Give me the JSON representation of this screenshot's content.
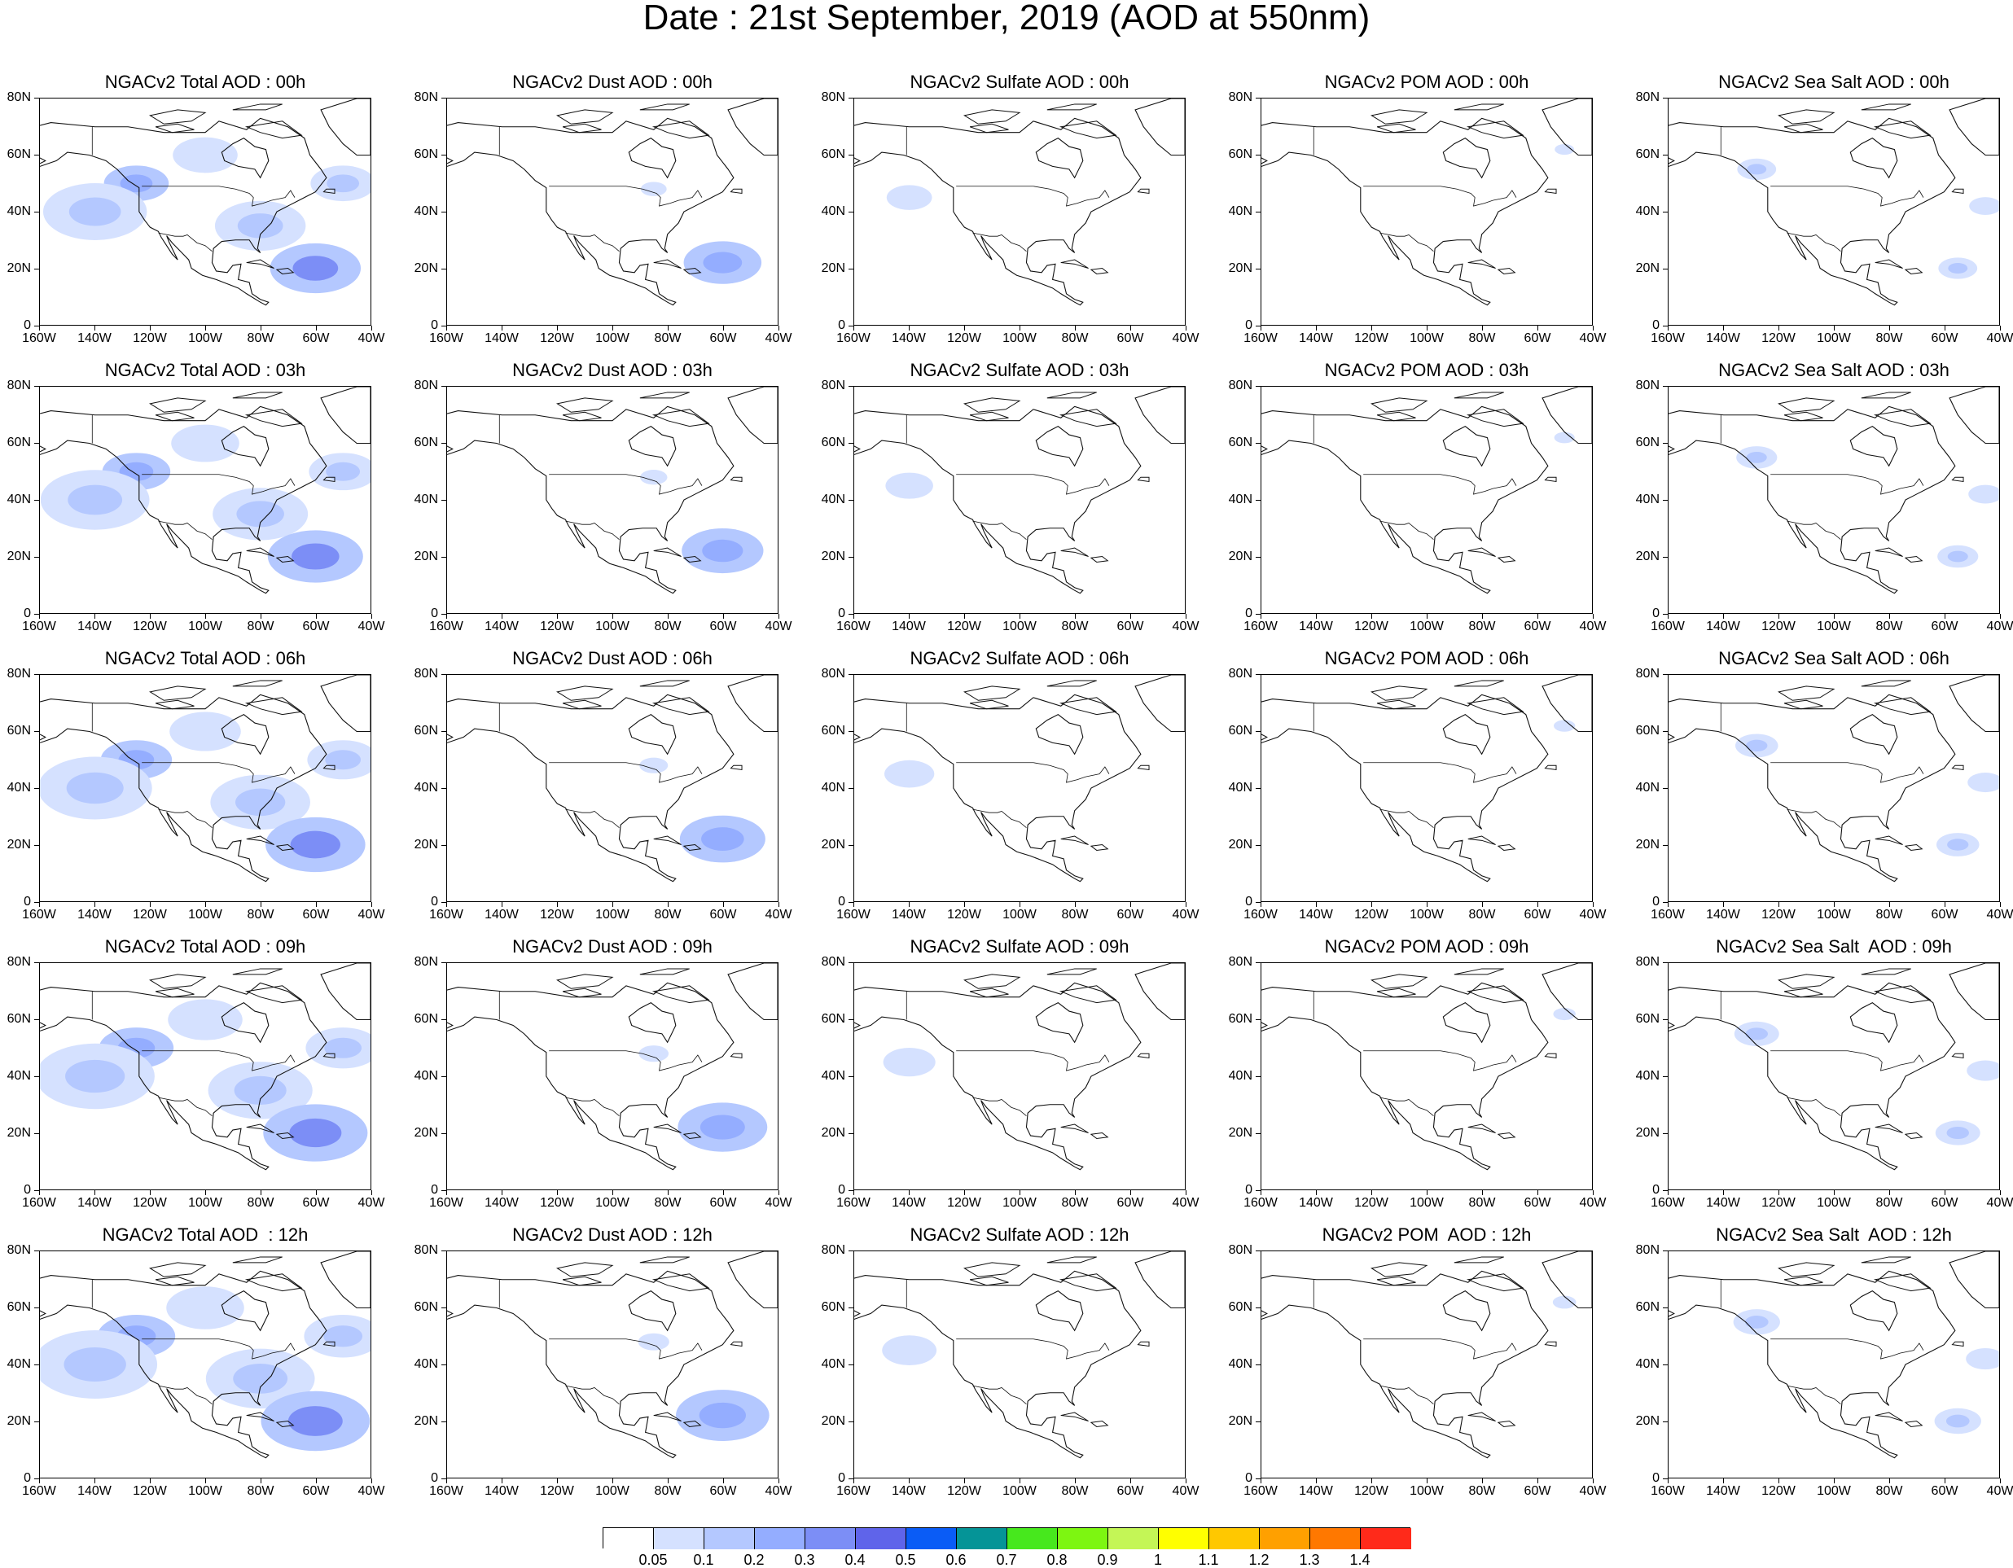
{
  "figure": {
    "title": "Date : 21st September, 2019 (AOD at 550nm)"
  },
  "panels": [
    [
      "NGACv2 Total AOD : 00h",
      "NGACv2 Dust AOD : 00h",
      "NGACv2 Sulfate AOD : 00h",
      "NGACv2 POM AOD : 00h",
      "NGACv2 Sea Salt AOD : 00h"
    ],
    [
      "NGACv2 Total AOD : 03h",
      "NGACv2 Dust AOD : 03h",
      "NGACv2 Sulfate AOD : 03h",
      "NGACv2 POM AOD : 03h",
      "NGACv2 Sea Salt AOD : 03h"
    ],
    [
      "NGACv2 Total AOD : 06h",
      "NGACv2 Dust AOD : 06h",
      "NGACv2 Sulfate AOD : 06h",
      "NGACv2 POM AOD : 06h",
      "NGACv2 Sea Salt AOD : 06h"
    ],
    [
      "NGACv2 Total AOD : 09h",
      "NGACv2 Dust AOD : 09h",
      "NGACv2 Sulfate AOD : 09h",
      "NGACv2 POM AOD : 09h",
      "NGACv2 Sea Salt  AOD : 09h"
    ],
    [
      "NGACv2 Total AOD  : 12h",
      "NGACv2 Dust AOD : 12h",
      "NGACv2 Sulfate AOD : 12h",
      "NGACv2 POM  AOD : 12h",
      "NGACv2 Sea Salt  AOD : 12h"
    ]
  ],
  "axes": {
    "lon_labels": [
      "160W",
      "140W",
      "120W",
      "100W",
      "80W",
      "60W",
      "40W"
    ],
    "lat_labels": [
      "0",
      "20N",
      "40N",
      "60N",
      "80N"
    ]
  },
  "colorbar": {
    "colors": [
      "#ffffff",
      "#d5e1ff",
      "#b4c8ff",
      "#94adff",
      "#7c8ef6",
      "#5f64ea",
      "#0a5cf6",
      "#059497",
      "#47e81d",
      "#7df611",
      "#c4f656",
      "#ffff00",
      "#ffc800",
      "#ffa000",
      "#ff7800",
      "#ff2a1a"
    ],
    "labels": [
      "0.05",
      "0.1",
      "0.2",
      "0.3",
      "0.4",
      "0.5",
      "0.6",
      "0.7",
      "0.8",
      "0.9",
      "1",
      "1.1",
      "1.2",
      "1.3",
      "1.4"
    ]
  },
  "fields": {
    "total": {
      "plumes": [
        {
          "lon": -125,
          "lat": 50,
          "r": 1.0,
          "level": 0.25
        },
        {
          "lon": -140,
          "lat": 40,
          "r": 1.6,
          "level": 0.12
        },
        {
          "lon": -80,
          "lat": 35,
          "r": 1.4,
          "level": 0.12
        },
        {
          "lon": -60,
          "lat": 20,
          "r": 1.4,
          "level": 0.3
        },
        {
          "lon": -50,
          "lat": 50,
          "r": 1.0,
          "level": 0.12
        },
        {
          "lon": -100,
          "lat": 60,
          "r": 1.0,
          "level": 0.08
        }
      ]
    },
    "dust": {
      "plumes": [
        {
          "lon": -60,
          "lat": 22,
          "r": 1.2,
          "level": 0.25
        },
        {
          "lon": -85,
          "lat": 48,
          "r": 0.4,
          "level": 0.08
        }
      ]
    },
    "sulfate": {
      "plumes": [
        {
          "lon": -140,
          "lat": 45,
          "r": 0.7,
          "level": 0.08
        }
      ]
    },
    "pom": {
      "plumes": [
        {
          "lon": -50,
          "lat": 62,
          "r": 0.3,
          "level": 0.08
        }
      ]
    },
    "seasalt": {
      "plumes": [
        {
          "lon": -128,
          "lat": 55,
          "r": 0.6,
          "level": 0.18
        },
        {
          "lon": -55,
          "lat": 20,
          "r": 0.6,
          "level": 0.1
        },
        {
          "lon": -45,
          "lat": 42,
          "r": 0.5,
          "level": 0.08
        }
      ]
    }
  }
}
